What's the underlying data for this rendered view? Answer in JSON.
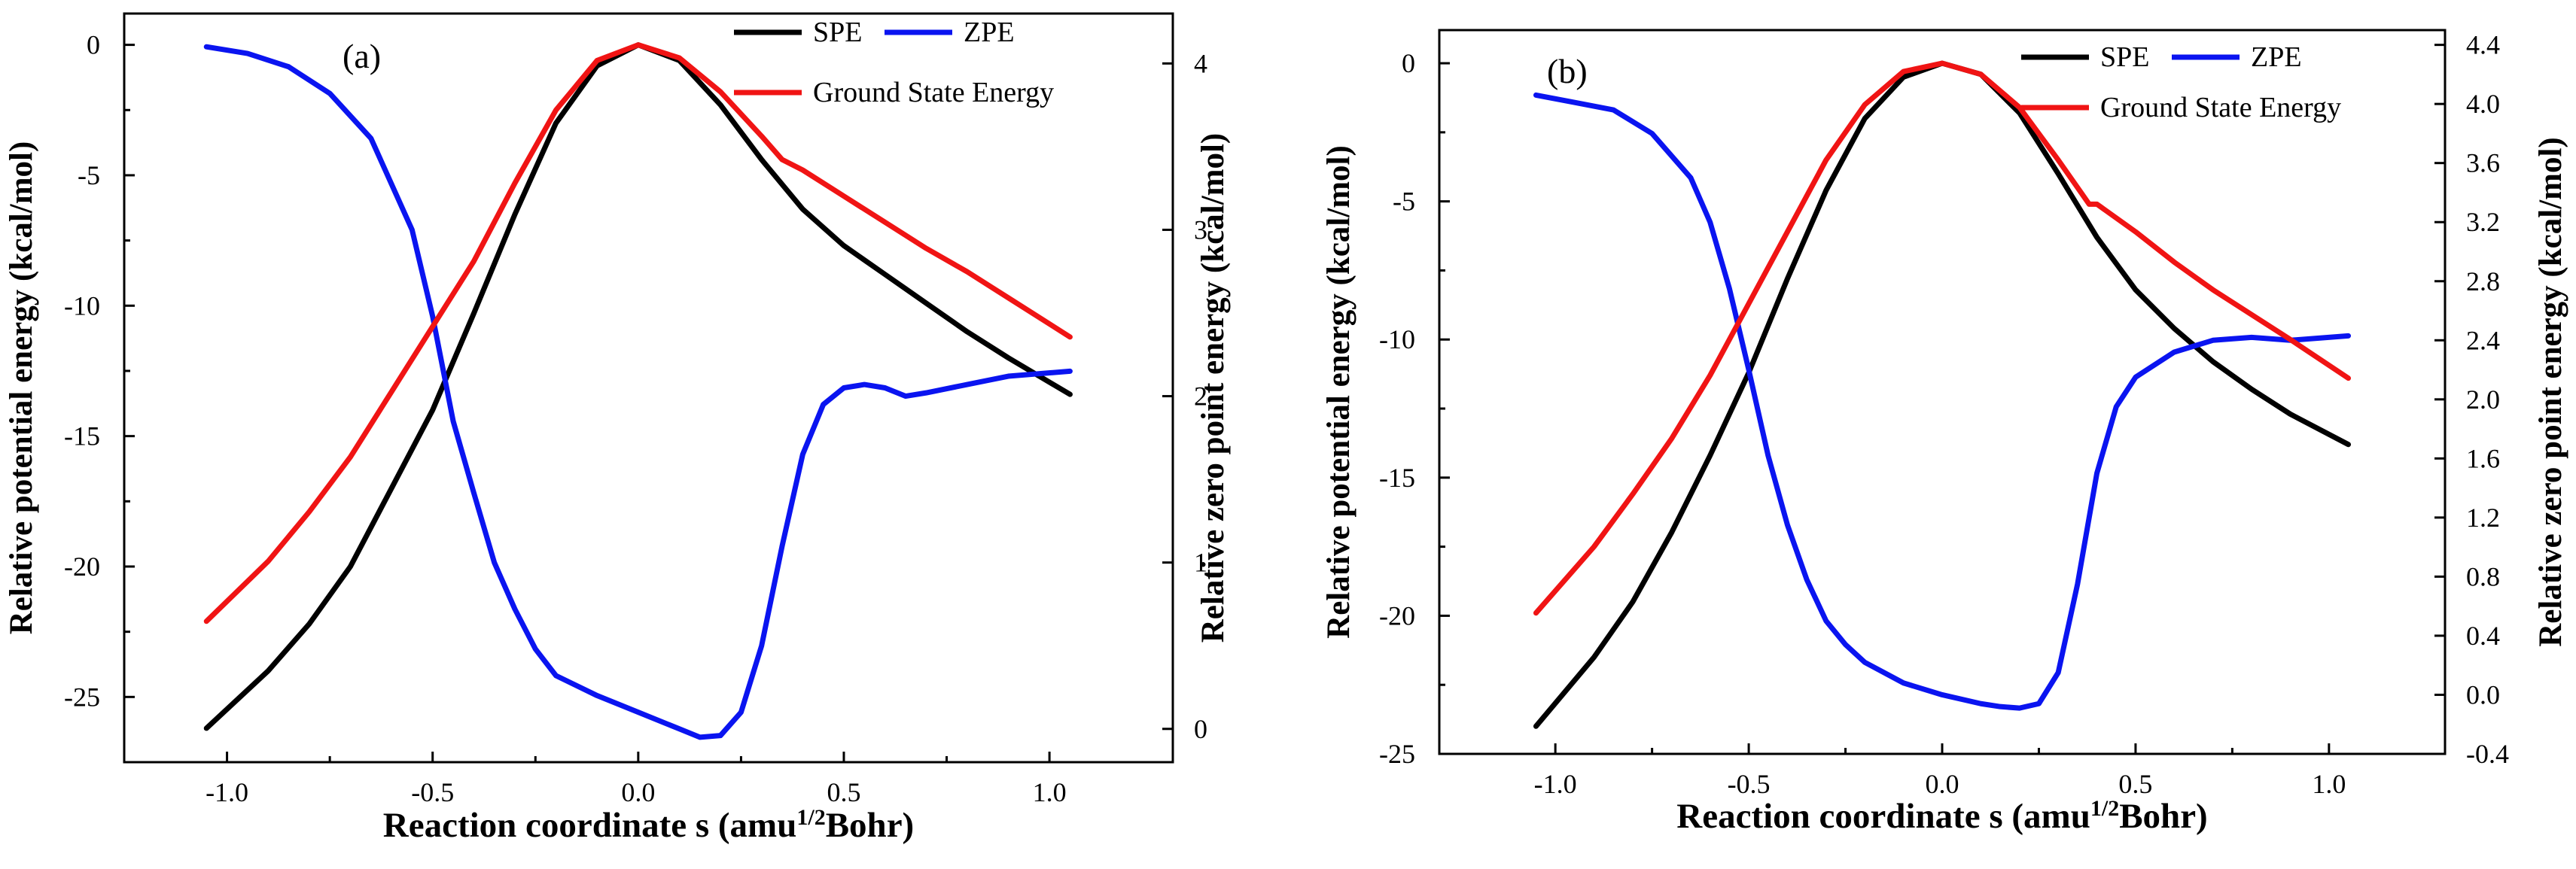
{
  "figure": {
    "xlabel_main": "Reaction coordinate s (amu",
    "xlabel_sup": "1/2",
    "xlabel_end": "Bohr)",
    "left_ylabel": "Relative potential energy (kcal/mol)",
    "right_ylabel": "Relative zero point energy (kcal/mol)"
  },
  "chart_data": [
    {
      "type": "line",
      "panel_label": "(a)",
      "xlim": [
        -1.25,
        1.3
      ],
      "ylim_left": [
        -27.5,
        1.2
      ],
      "ylim_right": [
        -0.2,
        4.3
      ],
      "xticks": [
        -1.0,
        -0.5,
        0.0,
        0.5,
        1.0
      ],
      "xtick_labels": [
        "-1.0",
        "-0.5",
        "0.0",
        "0.5",
        "1.0"
      ],
      "yticks_left": [
        0,
        -5,
        -10,
        -15,
        -20,
        -25
      ],
      "ytick_labels_left": [
        "0",
        "-5",
        "-10",
        "-15",
        "-20",
        "-25"
      ],
      "yticks_right": [
        0,
        1,
        2,
        3,
        4
      ],
      "ytick_labels_right": [
        "0",
        "1",
        "2",
        "3",
        "4"
      ],
      "legend": [
        {
          "label": "SPE",
          "color": "#000000"
        },
        {
          "label": "ZPE",
          "color": "#0a14f0"
        },
        {
          "label": "Ground State Energy",
          "color": "#f01414"
        }
      ],
      "series": [
        {
          "name": "SPE",
          "axis": "left",
          "color": "#000000",
          "x": [
            -1.05,
            -0.9,
            -0.8,
            -0.7,
            -0.6,
            -0.5,
            -0.4,
            -0.3,
            -0.2,
            -0.1,
            0.0,
            0.1,
            0.2,
            0.3,
            0.4,
            0.5,
            0.6,
            0.7,
            0.8,
            0.9,
            1.05
          ],
          "y": [
            -26.2,
            -24.0,
            -22.2,
            -20.0,
            -17.0,
            -14.0,
            -10.3,
            -6.5,
            -3.0,
            -0.8,
            0.0,
            -0.6,
            -2.3,
            -4.4,
            -6.3,
            -7.7,
            -8.8,
            -9.9,
            -11.0,
            -12.0,
            -13.4
          ]
        },
        {
          "name": "ZPE",
          "axis": "right",
          "color": "#0a14f0",
          "x": [
            -1.05,
            -0.95,
            -0.85,
            -0.75,
            -0.65,
            -0.55,
            -0.5,
            -0.45,
            -0.4,
            -0.35,
            -0.3,
            -0.25,
            -0.2,
            -0.1,
            0.0,
            0.1,
            0.15,
            0.2,
            0.25,
            0.3,
            0.35,
            0.4,
            0.45,
            0.5,
            0.55,
            0.6,
            0.65,
            0.7,
            0.8,
            0.9,
            1.05
          ],
          "y": [
            4.1,
            4.06,
            3.98,
            3.82,
            3.55,
            3.0,
            2.48,
            1.85,
            1.42,
            1.0,
            0.72,
            0.48,
            0.32,
            0.2,
            0.1,
            0.0,
            -0.05,
            -0.04,
            0.1,
            0.5,
            1.1,
            1.65,
            1.95,
            2.05,
            2.07,
            2.05,
            2.0,
            2.02,
            2.07,
            2.12,
            2.15
          ]
        },
        {
          "name": "Ground State Energy",
          "axis": "left",
          "color": "#f01414",
          "x": [
            -1.05,
            -0.9,
            -0.8,
            -0.7,
            -0.6,
            -0.5,
            -0.4,
            -0.3,
            -0.2,
            -0.1,
            0.0,
            0.1,
            0.2,
            0.3,
            0.35,
            0.4,
            0.5,
            0.6,
            0.7,
            0.8,
            0.9,
            1.05
          ],
          "y": [
            -22.1,
            -19.8,
            -17.9,
            -15.8,
            -13.3,
            -10.8,
            -8.3,
            -5.3,
            -2.5,
            -0.6,
            0.0,
            -0.5,
            -1.8,
            -3.5,
            -4.4,
            -4.8,
            -5.8,
            -6.8,
            -7.8,
            -8.7,
            -9.7,
            -11.2
          ]
        }
      ]
    },
    {
      "type": "line",
      "panel_label": "(b)",
      "xlim": [
        -1.3,
        1.3
      ],
      "ylim_left": [
        -25,
        1.2
      ],
      "ylim_right": [
        -0.4,
        4.5
      ],
      "xticks": [
        -1.0,
        -0.5,
        0.0,
        0.5,
        1.0
      ],
      "xtick_labels": [
        "-1.0",
        "-0.5",
        "0.0",
        "0.5",
        "1.0"
      ],
      "yticks_left": [
        0,
        -5,
        -10,
        -15,
        -20,
        -25
      ],
      "ytick_labels_left": [
        "0",
        "-5",
        "-10",
        "-15",
        "-20",
        "-25"
      ],
      "yticks_right": [
        -0.4,
        0.0,
        0.4,
        0.8,
        1.2,
        1.6,
        2.0,
        2.4,
        2.8,
        3.2,
        3.6,
        4.0,
        4.4
      ],
      "ytick_labels_right": [
        "-0.4",
        "0.0",
        "0.4",
        "0.8",
        "1.2",
        "1.6",
        "2.0",
        "2.4",
        "2.8",
        "3.2",
        "3.6",
        "4.0",
        "4.4"
      ],
      "legend": [
        {
          "label": "SPE",
          "color": "#000000"
        },
        {
          "label": "ZPE",
          "color": "#0a14f0"
        },
        {
          "label": "Ground State Energy",
          "color": "#f01414"
        }
      ],
      "series": [
        {
          "name": "SPE",
          "axis": "left",
          "color": "#000000",
          "x": [
            -1.05,
            -0.9,
            -0.8,
            -0.7,
            -0.6,
            -0.5,
            -0.4,
            -0.3,
            -0.2,
            -0.1,
            0.0,
            0.1,
            0.2,
            0.3,
            0.4,
            0.5,
            0.6,
            0.7,
            0.8,
            0.9,
            1.05
          ],
          "y": [
            -24.0,
            -21.5,
            -19.5,
            -17.0,
            -14.2,
            -11.2,
            -7.8,
            -4.6,
            -2.0,
            -0.5,
            0.0,
            -0.4,
            -1.8,
            -4.0,
            -6.3,
            -8.2,
            -9.6,
            -10.8,
            -11.8,
            -12.7,
            -13.8
          ]
        },
        {
          "name": "ZPE",
          "axis": "right",
          "color": "#0a14f0",
          "x": [
            -1.05,
            -0.95,
            -0.85,
            -0.75,
            -0.65,
            -0.6,
            -0.55,
            -0.5,
            -0.45,
            -0.4,
            -0.35,
            -0.3,
            -0.25,
            -0.2,
            -0.1,
            0.0,
            0.1,
            0.15,
            0.2,
            0.25,
            0.3,
            0.35,
            0.4,
            0.45,
            0.5,
            0.6,
            0.7,
            0.8,
            0.9,
            1.05
          ],
          "y": [
            4.06,
            4.01,
            3.96,
            3.8,
            3.5,
            3.2,
            2.75,
            2.2,
            1.62,
            1.15,
            0.78,
            0.5,
            0.34,
            0.22,
            0.08,
            0.0,
            -0.06,
            -0.08,
            -0.09,
            -0.06,
            0.15,
            0.75,
            1.5,
            1.95,
            2.15,
            2.32,
            2.4,
            2.42,
            2.4,
            2.43
          ]
        },
        {
          "name": "Ground State Energy",
          "axis": "left",
          "color": "#f01414",
          "x": [
            -1.05,
            -0.9,
            -0.8,
            -0.7,
            -0.6,
            -0.5,
            -0.4,
            -0.3,
            -0.2,
            -0.1,
            0.0,
            0.1,
            0.2,
            0.3,
            0.38,
            0.4,
            0.5,
            0.6,
            0.7,
            0.8,
            0.9,
            1.05
          ],
          "y": [
            -19.9,
            -17.5,
            -15.6,
            -13.6,
            -11.3,
            -8.7,
            -6.1,
            -3.5,
            -1.5,
            -0.3,
            0.0,
            -0.4,
            -1.6,
            -3.5,
            -5.1,
            -5.1,
            -6.1,
            -7.2,
            -8.2,
            -9.1,
            -10.0,
            -11.4
          ]
        }
      ]
    }
  ]
}
